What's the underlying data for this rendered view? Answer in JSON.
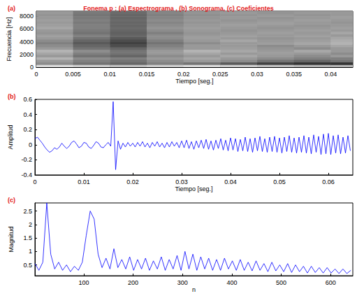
{
  "title": "Fonema p : (a) Espectrograma , (b) Sonograma, (c) Coeficientes",
  "chart_data": [
    {
      "type": "heatmap",
      "label": "(a)",
      "x_label": "Tiempo [seg.]",
      "y_label": "Frecuencia [Hz]",
      "x_edges": [
        0,
        0.005,
        0.01,
        0.015,
        0.02,
        0.025,
        0.03,
        0.035,
        0.04,
        0.045
      ],
      "y_edges": [
        0,
        400,
        800,
        1200,
        1600,
        2000,
        2400,
        2800,
        3200,
        3600,
        4000,
        4400,
        4800,
        5200,
        5600,
        6000,
        6400,
        6800,
        7200,
        7600,
        8000,
        8400,
        8800
      ],
      "z": [
        [
          0.85,
          0.8,
          0.75,
          0.8,
          0.85,
          0.8,
          0.75,
          0.7,
          0.7
        ],
        [
          0.55,
          0.45,
          0.4,
          0.5,
          0.45,
          0.35,
          0.25,
          0.2,
          0.2
        ],
        [
          0.6,
          0.5,
          0.45,
          0.55,
          0.6,
          0.55,
          0.45,
          0.4,
          0.45
        ],
        [
          0.7,
          0.55,
          0.5,
          0.6,
          0.65,
          0.6,
          0.55,
          0.5,
          0.5
        ],
        [
          0.6,
          0.45,
          0.4,
          0.55,
          0.6,
          0.65,
          0.6,
          0.55,
          0.6
        ],
        [
          0.65,
          0.5,
          0.45,
          0.6,
          0.65,
          0.6,
          0.62,
          0.6,
          0.55
        ],
        [
          0.7,
          0.55,
          0.45,
          0.6,
          0.7,
          0.65,
          0.6,
          0.65,
          0.6
        ],
        [
          0.6,
          0.45,
          0.4,
          0.55,
          0.6,
          0.62,
          0.58,
          0.55,
          0.6
        ],
        [
          0.55,
          0.4,
          0.3,
          0.5,
          0.6,
          0.6,
          0.55,
          0.6,
          0.65
        ],
        [
          0.5,
          0.35,
          0.25,
          0.45,
          0.55,
          0.6,
          0.62,
          0.65,
          0.7
        ],
        [
          0.55,
          0.4,
          0.3,
          0.5,
          0.6,
          0.65,
          0.6,
          0.62,
          0.68
        ],
        [
          0.6,
          0.45,
          0.35,
          0.55,
          0.62,
          0.6,
          0.58,
          0.6,
          0.65
        ],
        [
          0.62,
          0.5,
          0.4,
          0.55,
          0.6,
          0.62,
          0.6,
          0.62,
          0.6
        ],
        [
          0.58,
          0.45,
          0.38,
          0.5,
          0.58,
          0.6,
          0.62,
          0.6,
          0.65
        ],
        [
          0.6,
          0.48,
          0.4,
          0.55,
          0.6,
          0.58,
          0.6,
          0.62,
          0.6
        ],
        [
          0.65,
          0.5,
          0.42,
          0.58,
          0.62,
          0.6,
          0.58,
          0.6,
          0.62
        ],
        [
          0.62,
          0.5,
          0.4,
          0.55,
          0.6,
          0.62,
          0.6,
          0.58,
          0.6
        ],
        [
          0.6,
          0.48,
          0.4,
          0.52,
          0.58,
          0.6,
          0.62,
          0.6,
          0.58
        ],
        [
          0.62,
          0.5,
          0.42,
          0.55,
          0.6,
          0.58,
          0.6,
          0.62,
          0.6
        ],
        [
          0.6,
          0.48,
          0.4,
          0.52,
          0.58,
          0.6,
          0.58,
          0.6,
          0.62
        ],
        [
          0.58,
          0.46,
          0.4,
          0.5,
          0.56,
          0.58,
          0.6,
          0.58,
          0.6
        ],
        [
          0.6,
          0.48,
          0.42,
          0.52,
          0.58,
          0.6,
          0.58,
          0.6,
          0.6
        ]
      ],
      "zlim": [
        0,
        1
      ],
      "xlim": [
        0,
        0.043
      ],
      "ylim": [
        0,
        8800
      ],
      "xticks": [
        0,
        0.005,
        0.01,
        0.015,
        0.02,
        0.025,
        0.03,
        0.035,
        0.04
      ],
      "yticks": [
        0,
        2000,
        4000,
        6000,
        8000
      ]
    },
    {
      "type": "line",
      "label": "(b)",
      "x_label": "Tiempo [seg.]",
      "y_label": "Amplitud",
      "color": "#0000ff",
      "x": [
        0,
        0.0005,
        0.001,
        0.0015,
        0.002,
        0.0025,
        0.003,
        0.0035,
        0.004,
        0.0045,
        0.005,
        0.0055,
        0.006,
        0.0065,
        0.007,
        0.0075,
        0.008,
        0.0085,
        0.009,
        0.0095,
        0.01,
        0.0105,
        0.011,
        0.0115,
        0.012,
        0.0125,
        0.013,
        0.0135,
        0.014,
        0.0145,
        0.015,
        0.0155,
        0.016,
        0.0165,
        0.017,
        0.0175,
        0.018,
        0.0185,
        0.019,
        0.0195,
        0.02,
        0.0205,
        0.021,
        0.0215,
        0.022,
        0.0225,
        0.023,
        0.0235,
        0.024,
        0.0245,
        0.025,
        0.0255,
        0.026,
        0.0265,
        0.027,
        0.0275,
        0.028,
        0.0285,
        0.029,
        0.0295,
        0.03,
        0.0305,
        0.031,
        0.0315,
        0.032,
        0.0325,
        0.033,
        0.0335,
        0.034,
        0.0345,
        0.035,
        0.0355,
        0.036,
        0.0365,
        0.037,
        0.0375,
        0.038,
        0.0385,
        0.039,
        0.0395,
        0.04,
        0.0405,
        0.041,
        0.0415,
        0.042,
        0.0425,
        0.043,
        0.0435,
        0.044,
        0.0445,
        0.045,
        0.0455,
        0.046,
        0.0465,
        0.047,
        0.0475,
        0.048,
        0.0485,
        0.049,
        0.0495,
        0.05,
        0.0505,
        0.051,
        0.0515,
        0.052,
        0.0525,
        0.053,
        0.0535,
        0.054,
        0.0545,
        0.055,
        0.0555,
        0.056,
        0.0565,
        0.057,
        0.0575,
        0.058,
        0.0585,
        0.059,
        0.0595,
        0.06,
        0.0605,
        0.061,
        0.0615,
        0.062,
        0.0625,
        0.063,
        0.0635,
        0.064,
        0.0645
      ],
      "values": [
        0.08,
        0.1,
        0.06,
        0.02,
        -0.03,
        -0.07,
        -0.1,
        -0.08,
        -0.04,
        -0.06,
        -0.03,
        0.02,
        -0.02,
        -0.05,
        -0.02,
        0.03,
        0.05,
        0.01,
        -0.04,
        -0.02,
        0.03,
        0.02,
        -0.03,
        -0.05,
        -0.01,
        0.04,
        0.02,
        -0.03,
        -0.04,
        0.0,
        0.03,
        -0.02,
        0.57,
        -0.33,
        0.05,
        -0.06,
        0.02,
        -0.03,
        0.03,
        -0.02,
        0.02,
        -0.03,
        0.03,
        -0.02,
        0.04,
        -0.03,
        0.02,
        -0.04,
        0.03,
        -0.02,
        0.04,
        -0.03,
        0.02,
        -0.04,
        0.03,
        -0.03,
        0.04,
        -0.02,
        0.03,
        -0.04,
        0.05,
        -0.04,
        0.06,
        -0.05,
        0.04,
        -0.06,
        0.05,
        -0.04,
        0.06,
        -0.05,
        0.07,
        -0.06,
        0.05,
        -0.07,
        0.06,
        -0.05,
        0.08,
        -0.07,
        0.06,
        -0.08,
        0.09,
        -0.07,
        0.08,
        -0.09,
        0.07,
        -0.08,
        0.1,
        -0.09,
        0.08,
        -0.1,
        0.09,
        -0.08,
        0.11,
        -0.09,
        0.08,
        -0.1,
        0.1,
        -0.09,
        0.11,
        -0.1,
        0.09,
        -0.11,
        0.1,
        -0.09,
        0.12,
        -0.1,
        0.09,
        -0.11,
        0.1,
        -0.1,
        0.12,
        -0.11,
        0.1,
        -0.12,
        0.13,
        -0.1,
        0.11,
        -0.13,
        0.14,
        -0.12,
        0.15,
        -0.13,
        0.12,
        -0.11,
        0.13,
        -0.12,
        0.1,
        -0.11,
        0.12,
        -0.08
      ],
      "xlim": [
        0,
        0.065
      ],
      "ylim": [
        -0.4,
        0.6
      ],
      "xticks": [
        0,
        0.01,
        0.02,
        0.03,
        0.04,
        0.05,
        0.06
      ],
      "yticks": [
        -0.4,
        -0.2,
        0,
        0.2,
        0.4,
        0.6
      ]
    },
    {
      "type": "line",
      "label": "(c)",
      "x_label": "n",
      "y_label": "Magnitud",
      "color": "#0000ff",
      "x": [
        1,
        9,
        17,
        25,
        33,
        41,
        49,
        57,
        65,
        73,
        81,
        89,
        97,
        105,
        113,
        121,
        129,
        137,
        145,
        153,
        161,
        169,
        177,
        185,
        193,
        201,
        209,
        217,
        225,
        233,
        241,
        249,
        257,
        265,
        273,
        281,
        289,
        297,
        305,
        313,
        321,
        329,
        337,
        345,
        353,
        361,
        369,
        377,
        385,
        393,
        401,
        409,
        417,
        425,
        433,
        441,
        449,
        457,
        465,
        473,
        481,
        489,
        497,
        505,
        513,
        521,
        529,
        537,
        545,
        553,
        561,
        569,
        577,
        585,
        593,
        601,
        609,
        617,
        625,
        633,
        641
      ],
      "values": [
        0.55,
        0.3,
        0.6,
        2.8,
        0.9,
        0.35,
        0.6,
        0.3,
        0.5,
        0.25,
        0.45,
        0.3,
        0.6,
        1.6,
        2.5,
        2.2,
        0.9,
        0.4,
        0.75,
        0.35,
        1.1,
        0.4,
        0.7,
        0.35,
        0.8,
        0.3,
        0.7,
        0.35,
        0.75,
        0.3,
        0.65,
        0.35,
        0.8,
        0.3,
        0.7,
        0.35,
        0.85,
        0.3,
        1.0,
        0.35,
        0.9,
        0.3,
        0.8,
        0.35,
        0.75,
        0.3,
        0.7,
        0.3,
        0.75,
        0.35,
        0.65,
        0.3,
        0.7,
        0.3,
        0.6,
        0.28,
        0.65,
        0.3,
        0.55,
        0.25,
        0.6,
        0.28,
        0.5,
        0.25,
        0.55,
        0.22,
        0.5,
        0.25,
        0.45,
        0.2,
        0.45,
        0.22,
        0.4,
        0.2,
        0.4,
        0.2,
        0.35,
        0.18,
        0.35,
        0.18,
        0.3
      ],
      "xlim": [
        1,
        645
      ],
      "ylim": [
        0.1,
        2.8
      ],
      "xticks": [
        100,
        200,
        300,
        400,
        500,
        600
      ],
      "yticks": [
        0.5,
        1,
        1.5,
        2,
        2.5
      ]
    }
  ]
}
